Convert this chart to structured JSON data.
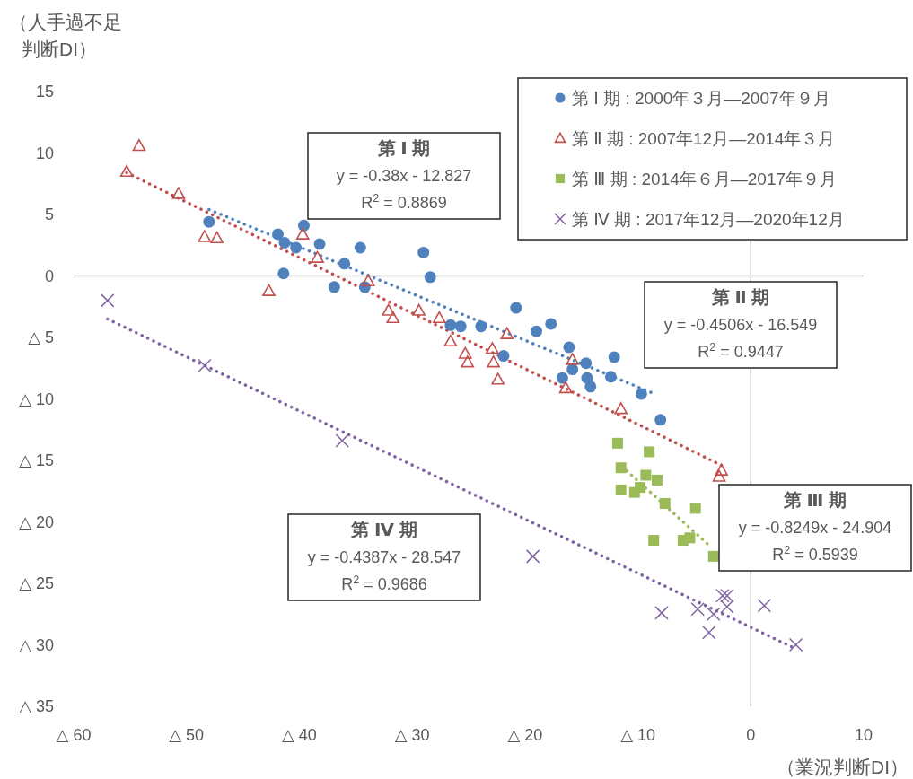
{
  "chart_data": {
    "type": "scatter",
    "xlabel": "（業況判断DI）",
    "ylabel": "（人手過不足判断DI）",
    "xlim": [
      -60,
      10
    ],
    "ylim": [
      -35,
      15
    ],
    "xticks": [
      {
        "value": -60,
        "label": "△ 60"
      },
      {
        "value": -50,
        "label": "△ 50"
      },
      {
        "value": -40,
        "label": "△ 40"
      },
      {
        "value": -30,
        "label": "△ 30"
      },
      {
        "value": -20,
        "label": "△ 20"
      },
      {
        "value": -10,
        "label": "△ 10"
      },
      0,
      10
    ],
    "yticks": [
      {
        "value": -35,
        "label": "△ 35"
      },
      {
        "value": -30,
        "label": "△ 30"
      },
      {
        "value": -25,
        "label": "△ 25"
      },
      {
        "value": -20,
        "label": "△ 20"
      },
      {
        "value": -15,
        "label": "△ 15"
      },
      {
        "value": -10,
        "label": "△ 10"
      },
      {
        "value": -5,
        "label": "△ 5"
      },
      0,
      5,
      10,
      15
    ],
    "legend": "top right",
    "series": [
      {
        "name": "第 Ⅰ 期 : 2000年３月—2007年９月",
        "color": "#4f81bd",
        "marker": "circle",
        "x": [
          -48.0,
          -41.9,
          -41.3,
          -40.3,
          -39.6,
          -38.2,
          -41.4,
          -36.0,
          -34.6,
          -36.9,
          -34.2,
          -29.0,
          -28.4,
          -26.6,
          -25.7,
          -23.9,
          -20.8,
          -19.0,
          -17.7,
          -21.9,
          -16.1,
          -14.6,
          -15.8,
          -16.7,
          -14.5,
          -14.2,
          -12.1,
          -12.4,
          -9.7,
          -8.0
        ],
        "values": [
          4.4,
          3.4,
          2.7,
          2.3,
          4.1,
          2.6,
          0.2,
          1.0,
          2.3,
          -0.9,
          -0.9,
          1.9,
          -0.1,
          -4.0,
          -4.1,
          -4.1,
          -2.6,
          -4.5,
          -3.9,
          -6.5,
          -5.8,
          -7.1,
          -7.6,
          -8.3,
          -8.3,
          -9.0,
          -6.6,
          -8.2,
          -9.6,
          -11.7
        ]
      },
      {
        "name": "第 Ⅱ 期 : 2007年12月—2014年３月",
        "color": "#c0504d",
        "marker": "triangle",
        "x": [
          -55.3,
          -54.2,
          -50.7,
          -48.4,
          -47.3,
          -39.7,
          -38.4,
          -42.7,
          -33.9,
          -32.1,
          -31.7,
          -29.4,
          -27.6,
          -26.6,
          -25.3,
          -25.1,
          -22.9,
          -22.8,
          -22.4,
          -21.6,
          -15.8,
          -16.4,
          -11.5,
          -2.6,
          -2.8
        ],
        "values": [
          8.5,
          10.6,
          6.7,
          3.2,
          3.1,
          3.4,
          1.5,
          -1.2,
          -0.4,
          -2.8,
          -3.4,
          -2.8,
          -3.4,
          -5.3,
          -6.3,
          -7.0,
          -5.9,
          -7.0,
          -8.4,
          -4.7,
          -6.8,
          -9.1,
          -10.8,
          -15.8,
          -16.3
        ]
      },
      {
        "name": "第 Ⅲ 期 : 2014年６月—2017年９月",
        "color": "#9bbb59",
        "marker": "square",
        "x": [
          -11.8,
          -9.0,
          -11.5,
          -9.3,
          -8.3,
          -11.5,
          -10.3,
          -9.8,
          -7.6,
          -4.9,
          -8.6,
          -6.0,
          -5.4,
          -3.3
        ],
        "values": [
          -13.6,
          -14.3,
          -15.6,
          -16.2,
          -16.6,
          -17.4,
          -17.6,
          -17.2,
          -18.5,
          -18.9,
          -21.5,
          -21.5,
          -21.3,
          -22.8
        ]
      },
      {
        "name": "第 Ⅳ 期 : 2017年12月—2020年12月",
        "color": "#8064a2",
        "marker": "cross",
        "x": [
          -57.0,
          -48.4,
          -36.2,
          -19.3,
          -7.9,
          -4.7,
          -3.7,
          -3.3,
          -2.5,
          -2.1,
          -2.1,
          1.2,
          4.0
        ],
        "values": [
          -2.0,
          -7.3,
          -13.4,
          -22.8,
          -27.4,
          -27.1,
          -29.0,
          -27.5,
          -26.0,
          -26.0,
          -26.9,
          -26.8,
          -30.0
        ]
      },
      {
        "type": "line",
        "color": "#4f81bd",
        "line_style": "dotted",
        "marker": "none",
        "x": [
          -48.0,
          -8.5
        ],
        "values": [
          5.4,
          -9.6
        ]
      },
      {
        "type": "line",
        "color": "#c0504d",
        "line_style": "dotted",
        "marker": "none",
        "x": [
          -55.3,
          -2.6
        ],
        "values": [
          8.4,
          -15.4
        ]
      },
      {
        "type": "line",
        "color": "#9bbb59",
        "line_style": "dotted",
        "marker": "none",
        "x": [
          -11.4,
          -3.7
        ],
        "values": [
          -15.5,
          -21.9
        ]
      },
      {
        "type": "line",
        "color": "#8064a2",
        "line_style": "dotted",
        "marker": "none",
        "x": [
          -57.0,
          3.7
        ],
        "values": [
          -3.5,
          -30.2
        ]
      }
    ],
    "annotations": [
      "第 Ⅰ 期\ny = -0.38x - 12.827\nR$^{2}$ = 0.8869",
      "第 Ⅱ 期\ny = -0.4506x - 16.549\nR$^{2}$ = 0.9447",
      "第 Ⅲ 期\ny = -0.8249x - 24.904\nR$^{2}$ = 0.5939",
      "第 Ⅳ 期\ny = -0.4387x - 28.547\nR$^{2}$ = 0.9686"
    ]
  }
}
